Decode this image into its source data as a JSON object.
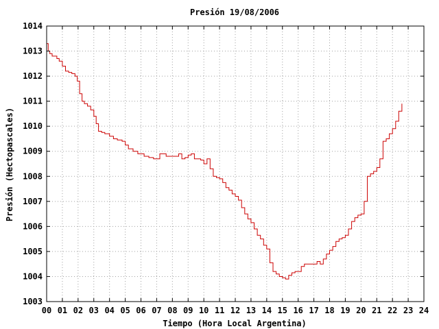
{
  "chart_data": {
    "type": "line",
    "title": "Presión 19/08/2006",
    "xlabel": "Tiempo (Hora Local Argentina)",
    "ylabel": "Presión (Hectopascales)",
    "xlim": [
      0,
      24
    ],
    "ylim": [
      1003,
      1014
    ],
    "x_ticks": [
      0,
      1,
      2,
      3,
      4,
      5,
      6,
      7,
      8,
      9,
      10,
      11,
      12,
      13,
      14,
      15,
      16,
      17,
      18,
      19,
      20,
      21,
      22,
      23,
      24
    ],
    "x_tick_labels": [
      "00",
      "01",
      "02",
      "03",
      "04",
      "05",
      "06",
      "07",
      "08",
      "09",
      "10",
      "11",
      "12",
      "13",
      "14",
      "15",
      "16",
      "17",
      "18",
      "19",
      "20",
      "21",
      "22",
      "23",
      "24"
    ],
    "y_ticks": [
      1003,
      1004,
      1005,
      1006,
      1007,
      1008,
      1009,
      1010,
      1011,
      1012,
      1013,
      1014
    ],
    "y_tick_labels": [
      "1003",
      "1004",
      "1005",
      "1006",
      "1007",
      "1008",
      "1009",
      "1010",
      "1011",
      "1012",
      "1013",
      "1014"
    ],
    "grid": true,
    "series": [
      {
        "color": "#cc0000",
        "x": [
          0.0,
          0.1,
          0.2,
          0.35,
          0.5,
          0.65,
          0.8,
          1.0,
          1.2,
          1.4,
          1.6,
          1.8,
          1.95,
          2.1,
          2.25,
          2.4,
          2.6,
          2.8,
          3.0,
          3.15,
          3.3,
          3.5,
          3.7,
          4.0,
          4.25,
          4.5,
          4.8,
          5.0,
          5.2,
          5.5,
          5.8,
          6.0,
          6.2,
          6.5,
          6.8,
          7.0,
          7.2,
          7.4,
          7.6,
          7.8,
          8.0,
          8.2,
          8.4,
          8.6,
          8.8,
          9.0,
          9.2,
          9.4,
          9.6,
          9.8,
          10.0,
          10.2,
          10.4,
          10.6,
          10.8,
          11.0,
          11.2,
          11.4,
          11.6,
          11.8,
          12.0,
          12.2,
          12.4,
          12.6,
          12.8,
          13.0,
          13.2,
          13.4,
          13.6,
          13.8,
          14.0,
          14.2,
          14.4,
          14.6,
          14.8,
          15.0,
          15.2,
          15.4,
          15.6,
          15.8,
          16.0,
          16.2,
          16.4,
          16.6,
          16.8,
          17.0,
          17.2,
          17.4,
          17.6,
          17.8,
          18.0,
          18.2,
          18.4,
          18.6,
          18.8,
          19.0,
          19.2,
          19.4,
          19.6,
          19.8,
          20.0,
          20.2,
          20.4,
          20.6,
          20.8,
          21.0,
          21.2,
          21.4,
          21.6,
          21.8,
          22.0,
          22.2,
          22.4,
          22.6
        ],
        "y": [
          1013.3,
          1013.0,
          1012.9,
          1012.8,
          1012.8,
          1012.7,
          1012.6,
          1012.4,
          1012.2,
          1012.15,
          1012.1,
          1012.0,
          1011.8,
          1011.3,
          1011.0,
          1010.9,
          1010.8,
          1010.65,
          1010.4,
          1010.1,
          1009.8,
          1009.75,
          1009.7,
          1009.6,
          1009.5,
          1009.45,
          1009.4,
          1009.25,
          1009.1,
          1009.0,
          1008.9,
          1008.9,
          1008.8,
          1008.75,
          1008.7,
          1008.7,
          1008.9,
          1008.9,
          1008.8,
          1008.8,
          1008.8,
          1008.8,
          1008.9,
          1008.7,
          1008.75,
          1008.85,
          1008.9,
          1008.7,
          1008.7,
          1008.65,
          1008.5,
          1008.7,
          1008.3,
          1008.0,
          1007.95,
          1007.9,
          1007.75,
          1007.55,
          1007.45,
          1007.3,
          1007.2,
          1007.05,
          1006.75,
          1006.5,
          1006.3,
          1006.15,
          1005.9,
          1005.65,
          1005.5,
          1005.25,
          1005.1,
          1004.55,
          1004.2,
          1004.1,
          1004.0,
          1003.95,
          1003.9,
          1004.05,
          1004.15,
          1004.2,
          1004.2,
          1004.4,
          1004.5,
          1004.5,
          1004.5,
          1004.5,
          1004.6,
          1004.5,
          1004.7,
          1004.9,
          1005.05,
          1005.2,
          1005.4,
          1005.5,
          1005.55,
          1005.65,
          1005.9,
          1006.2,
          1006.35,
          1006.45,
          1006.5,
          1007.0,
          1008.0,
          1008.1,
          1008.2,
          1008.35,
          1008.7,
          1009.4,
          1009.5,
          1009.7,
          1009.9,
          1010.2,
          1010.6,
          1010.9
        ]
      }
    ]
  }
}
